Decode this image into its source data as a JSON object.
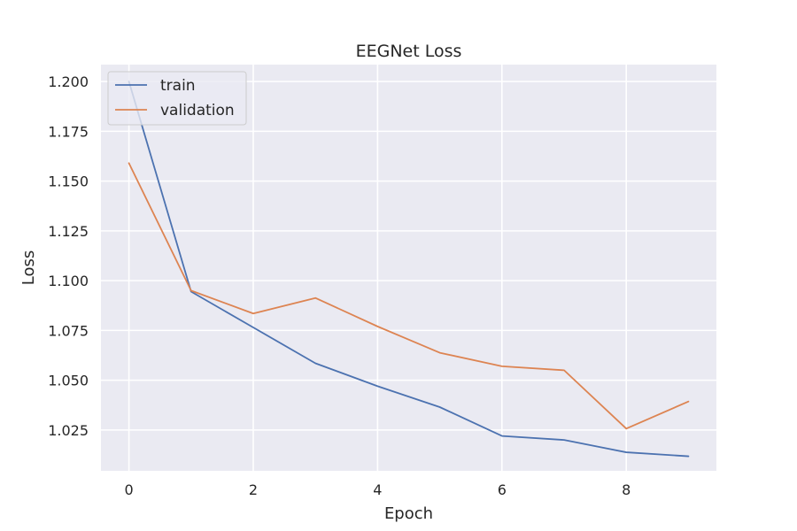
{
  "chart_data": {
    "type": "line",
    "title": "EEGNet Loss",
    "xlabel": "Epoch",
    "ylabel": "Loss",
    "x": [
      0,
      1,
      2,
      3,
      4,
      5,
      6,
      7,
      8,
      9
    ],
    "xlim": [
      -0.45,
      9.45
    ],
    "ylim": [
      1.0045,
      1.2085
    ],
    "xticks": [
      0,
      2,
      4,
      6,
      8
    ],
    "xtick_labels": [
      "0",
      "2",
      "4",
      "6",
      "8"
    ],
    "yticks": [
      1.025,
      1.05,
      1.075,
      1.1,
      1.125,
      1.15,
      1.175,
      1.2
    ],
    "ytick_labels": [
      "1.025",
      "1.050",
      "1.075",
      "1.100",
      "1.125",
      "1.150",
      "1.175",
      "1.200"
    ],
    "grid": true,
    "legend_position": "upper-left",
    "background_color": "#eaeaf2",
    "grid_color": "#ffffff",
    "series": [
      {
        "name": "train",
        "color": "#4c72b0",
        "values": [
          1.2,
          1.0945,
          1.0765,
          1.0585,
          1.047,
          1.0365,
          1.022,
          1.02,
          1.0138,
          1.0118
        ]
      },
      {
        "name": "validation",
        "color": "#dd8452",
        "values": [
          1.159,
          1.095,
          1.0835,
          1.0913,
          1.077,
          1.0638,
          1.057,
          1.055,
          1.0257,
          1.0393
        ]
      }
    ]
  }
}
